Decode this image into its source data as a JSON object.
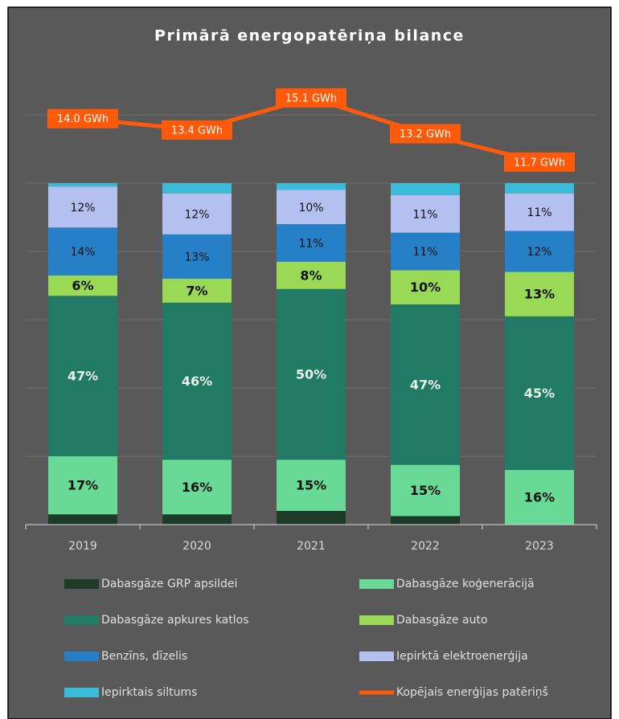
{
  "chart_data": {
    "type": "bar",
    "stacked": true,
    "title": "Primārā energopatēriņa bilance",
    "categories": [
      "2019",
      "2020",
      "2021",
      "2022",
      "2023"
    ],
    "ylim": [
      0,
      120
    ],
    "yticks": [
      0,
      20,
      40,
      60,
      80,
      100,
      120
    ],
    "y2lim": [
      -7.5,
      14.2
    ],
    "grid": true,
    "legend": "bottom",
    "series": [
      {
        "name": "Dabasgāze GRP apsildei",
        "color": "#1e3b2a",
        "values": [
          3,
          3,
          4,
          2.5,
          0
        ]
      },
      {
        "name": "Dabasgāze koģenerācijā",
        "color": "#68d996",
        "label_color": "#111111",
        "label_bold": true,
        "values": [
          17,
          16,
          15,
          15,
          16
        ],
        "value_labels": [
          "17%",
          "16%",
          "15%",
          "15%",
          "16%"
        ]
      },
      {
        "name": "Dabasgāze apkures katlos",
        "color": "#217a64",
        "label_color": "#e8f0ec",
        "label_bold": true,
        "values": [
          47,
          46,
          50,
          47,
          45
        ],
        "value_labels": [
          "47%",
          "46%",
          "50%",
          "47%",
          "45%"
        ]
      },
      {
        "name": "Dabasgāze auto",
        "color": "#9ad956",
        "label_color": "#111111",
        "label_bold": true,
        "values": [
          6,
          7,
          8,
          10,
          13
        ],
        "value_labels": [
          "6%",
          "7%",
          "8%",
          "10%",
          "13%"
        ]
      },
      {
        "name": "Benzīns, dīzelis",
        "color": "#2680c8",
        "label_color": "#111111",
        "label_bold": false,
        "values": [
          14,
          13,
          11,
          11,
          12
        ],
        "value_labels": [
          "14%",
          "13%",
          "11%",
          "11%",
          "12%"
        ]
      },
      {
        "name": "Iepirktā elektroenerģija",
        "color": "#b4c0f0",
        "label_color": "#111111",
        "label_bold": false,
        "values": [
          12,
          12,
          10,
          11,
          11
        ],
        "value_labels": [
          "12%",
          "12%",
          "10%",
          "11%",
          "11%"
        ]
      },
      {
        "name": "Iepirktais siltums",
        "color": "#3bbbd8",
        "values": [
          1,
          3,
          2,
          3.5,
          3
        ]
      },
      {
        "name": "Kopējais enerģijas patēriņš",
        "type": "line",
        "axis": "y2",
        "color": "#ff5a0a",
        "values": [
          14.0,
          13.4,
          15.1,
          13.2,
          11.7
        ],
        "value_labels": [
          "14.0 GWh",
          "13.4 GWh",
          "15.1 GWh",
          "13.2 GWh",
          "11.7 GWh"
        ]
      }
    ]
  }
}
